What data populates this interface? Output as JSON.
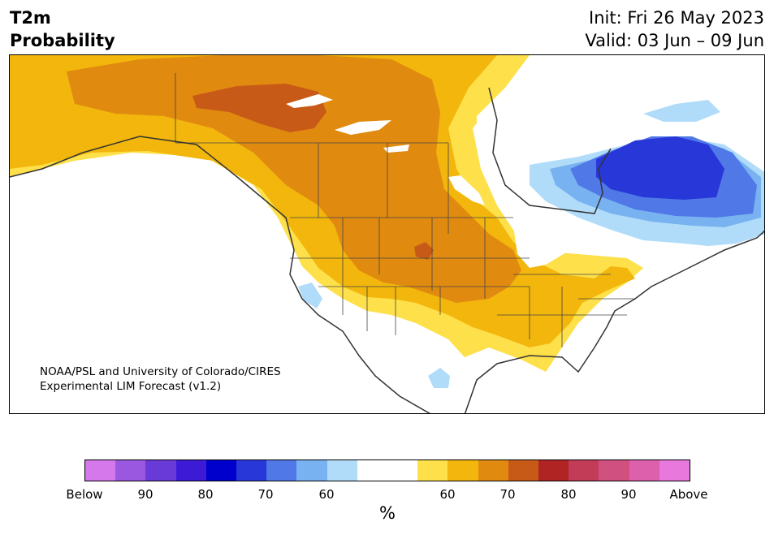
{
  "header": {
    "title_line1": "T2m",
    "title_line2": "Probability",
    "init": "Init: Fri 26 May 2023",
    "valid": "Valid: 03 Jun – 09 Jun"
  },
  "map": {
    "credit_line1": "NOAA/PSL and University of Colorado/CIRES",
    "credit_line2": "Experimental LIM Forecast (v1.2)"
  },
  "colorbar": {
    "colors": [
      "#d478ec",
      "#9a58e0",
      "#6a3ad8",
      "#3c1ad6",
      "#0000cc",
      "#2838d8",
      "#5078e6",
      "#78b2f0",
      "#b0dcfa",
      "#ffffff",
      "#ffffff",
      "#fde04a",
      "#f2b60c",
      "#e08a10",
      "#c85a18",
      "#b02424",
      "#c23c58",
      "#d05080",
      "#dc60ac",
      "#e878dc"
    ],
    "tick_labels": [
      "Below",
      "90",
      "80",
      "70",
      "60",
      "60",
      "70",
      "80",
      "90",
      "Above"
    ],
    "unit": "%"
  }
}
